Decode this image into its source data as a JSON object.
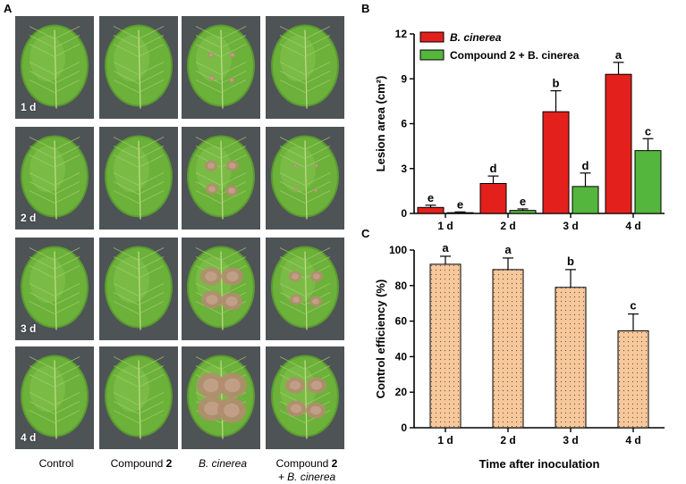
{
  "panels": {
    "a": "A",
    "b": "B",
    "c": "C"
  },
  "photo_grid": {
    "row_labels": [
      "1 d",
      "2 d",
      "3 d",
      "4 d"
    ],
    "columns": [
      {
        "label": "Control",
        "bold": "",
        "suffix": "",
        "line2": ""
      },
      {
        "label": "Compound ",
        "bold": "2",
        "suffix": "",
        "line2": ""
      },
      {
        "label": "B. cinerea",
        "bold": "",
        "suffix": "",
        "line2": ""
      },
      {
        "label": "Compound ",
        "bold": "2",
        "suffix": "",
        "line2": "+ B. cinerea"
      }
    ]
  },
  "chart_data": [
    {
      "type": "bar",
      "panel": "B",
      "categories": [
        "1 d",
        "2 d",
        "3 d",
        "4 d"
      ],
      "ylabel": "Lesion area (cm²)",
      "ylim": [
        0,
        12
      ],
      "yticks": [
        0,
        3,
        6,
        9,
        12
      ],
      "legend_position": "top-left",
      "series": [
        {
          "name": "B. cinerea",
          "color": "#e3201b",
          "values": [
            0.4,
            2.0,
            6.8,
            9.3
          ],
          "errors": [
            0.15,
            0.5,
            1.4,
            0.8
          ],
          "labels": [
            "e",
            "d",
            "b",
            "a"
          ]
        },
        {
          "name": "Compound 2 + B. cinerea",
          "color": "#55b63d",
          "values": [
            0.05,
            0.2,
            1.8,
            4.2
          ],
          "errors": [
            0.05,
            0.1,
            0.9,
            0.8
          ],
          "labels": [
            "e",
            "e",
            "d",
            "c"
          ]
        }
      ]
    },
    {
      "type": "bar",
      "panel": "C",
      "categories": [
        "1 d",
        "2 d",
        "3 d",
        "4 d"
      ],
      "ylabel": "Control efficiency (%)",
      "xlabel": "Time after inoculation",
      "ylim": [
        0,
        100
      ],
      "yticks": [
        0,
        20,
        40,
        60,
        80,
        100
      ],
      "color": "#f8c79a",
      "values": [
        92,
        89,
        79,
        54.5
      ],
      "errors": [
        4.5,
        6.5,
        10,
        9.5
      ],
      "labels": [
        "a",
        "a",
        "b",
        "c"
      ]
    }
  ]
}
